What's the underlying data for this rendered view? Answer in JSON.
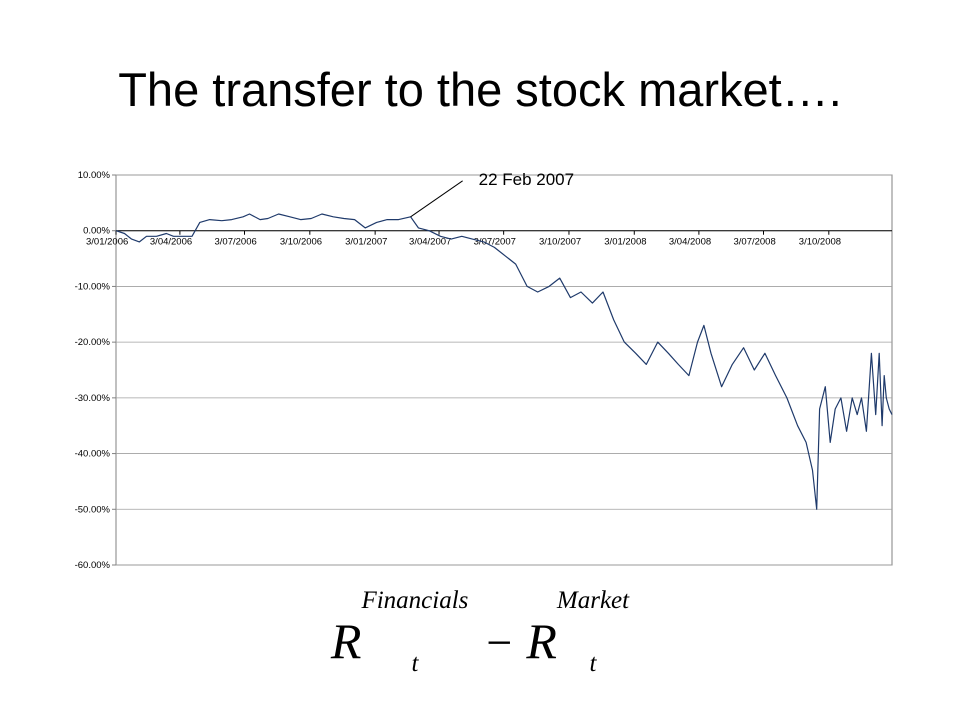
{
  "slide": {
    "title": "The transfer to the stock market…."
  },
  "formula": {
    "left_symbol": "R",
    "left_sup": "Financials",
    "left_sub": "t",
    "operator": "−",
    "right_symbol": "R",
    "right_sup": "Market",
    "right_sub": "t"
  },
  "chart_data": {
    "type": "line",
    "title": "",
    "xlabel": "",
    "ylabel": "",
    "ylim": [
      -0.6,
      0.1
    ],
    "y_ticks": [
      0.1,
      0.0,
      -0.1,
      -0.2,
      -0.3,
      -0.4,
      -0.5,
      -0.6
    ],
    "y_tick_labels": [
      "10.00%",
      "0.00%",
      "-10.00%",
      "-20.00%",
      "-30.00%",
      "-40.00%",
      "-50.00%",
      "-60.00%"
    ],
    "x_tick_labels": [
      "3/01/2006",
      "3/04/2006",
      "3/07/2006",
      "3/10/2006",
      "3/01/2007",
      "3/04/2007",
      "3/07/2007",
      "3/10/2007",
      "3/01/2008",
      "3/04/2008",
      "3/07/2008",
      "3/10/2008"
    ],
    "x_tick_dates": [
      "2006-01-03",
      "2006-04-03",
      "2006-07-03",
      "2006-10-03",
      "2007-01-03",
      "2007-04-03",
      "2007-07-03",
      "2007-10-03",
      "2008-01-03",
      "2008-04-03",
      "2008-07-03",
      "2008-10-03"
    ],
    "xlim": [
      "2006-01-03",
      "2008-12-31"
    ],
    "grid": true,
    "line_color": "#1f3a6b",
    "annotation": {
      "text": "22 Feb 2007",
      "x": "2007-02-22",
      "y": 0.025
    },
    "series": [
      {
        "points": [
          [
            "2006-01-03",
            0.0
          ],
          [
            "2006-01-15",
            -0.005
          ],
          [
            "2006-01-25",
            -0.015
          ],
          [
            "2006-02-05",
            -0.02
          ],
          [
            "2006-02-15",
            -0.01
          ],
          [
            "2006-03-01",
            -0.01
          ],
          [
            "2006-03-15",
            -0.005
          ],
          [
            "2006-03-25",
            -0.01
          ],
          [
            "2006-04-05",
            -0.01
          ],
          [
            "2006-04-20",
            -0.01
          ],
          [
            "2006-05-01",
            0.015
          ],
          [
            "2006-05-15",
            0.02
          ],
          [
            "2006-06-01",
            0.018
          ],
          [
            "2006-06-15",
            0.02
          ],
          [
            "2006-07-01",
            0.025
          ],
          [
            "2006-07-10",
            0.03
          ],
          [
            "2006-07-25",
            0.02
          ],
          [
            "2006-08-05",
            0.022
          ],
          [
            "2006-08-20",
            0.03
          ],
          [
            "2006-09-05",
            0.025
          ],
          [
            "2006-09-20",
            0.02
          ],
          [
            "2006-10-05",
            0.022
          ],
          [
            "2006-10-20",
            0.03
          ],
          [
            "2006-11-05",
            0.025
          ],
          [
            "2006-11-20",
            0.022
          ],
          [
            "2006-12-05",
            0.02
          ],
          [
            "2006-12-20",
            0.005
          ],
          [
            "2007-01-05",
            0.015
          ],
          [
            "2007-01-20",
            0.02
          ],
          [
            "2007-02-05",
            0.02
          ],
          [
            "2007-02-22",
            0.025
          ],
          [
            "2007-03-05",
            0.005
          ],
          [
            "2007-03-20",
            0.0
          ],
          [
            "2007-04-05",
            -0.01
          ],
          [
            "2007-04-20",
            -0.015
          ],
          [
            "2007-05-05",
            -0.01
          ],
          [
            "2007-05-20",
            -0.015
          ],
          [
            "2007-06-05",
            -0.02
          ],
          [
            "2007-06-20",
            -0.03
          ],
          [
            "2007-07-05",
            -0.045
          ],
          [
            "2007-07-20",
            -0.06
          ],
          [
            "2007-08-05",
            -0.1
          ],
          [
            "2007-08-20",
            -0.11
          ],
          [
            "2007-09-05",
            -0.1
          ],
          [
            "2007-09-20",
            -0.085
          ],
          [
            "2007-10-05",
            -0.12
          ],
          [
            "2007-10-20",
            -0.11
          ],
          [
            "2007-11-05",
            -0.13
          ],
          [
            "2007-11-20",
            -0.11
          ],
          [
            "2007-12-05",
            -0.16
          ],
          [
            "2007-12-20",
            -0.2
          ],
          [
            "2008-01-05",
            -0.22
          ],
          [
            "2008-01-20",
            -0.24
          ],
          [
            "2008-02-05",
            -0.2
          ],
          [
            "2008-02-20",
            -0.22
          ],
          [
            "2008-03-05",
            -0.24
          ],
          [
            "2008-03-20",
            -0.26
          ],
          [
            "2008-04-01",
            -0.2
          ],
          [
            "2008-04-10",
            -0.17
          ],
          [
            "2008-04-20",
            -0.22
          ],
          [
            "2008-05-05",
            -0.28
          ],
          [
            "2008-05-20",
            -0.24
          ],
          [
            "2008-06-05",
            -0.21
          ],
          [
            "2008-06-20",
            -0.25
          ],
          [
            "2008-07-05",
            -0.22
          ],
          [
            "2008-07-20",
            -0.26
          ],
          [
            "2008-08-05",
            -0.3
          ],
          [
            "2008-08-20",
            -0.35
          ],
          [
            "2008-09-01",
            -0.38
          ],
          [
            "2008-09-10",
            -0.43
          ],
          [
            "2008-09-16",
            -0.5
          ],
          [
            "2008-09-20",
            -0.32
          ],
          [
            "2008-09-28",
            -0.28
          ],
          [
            "2008-10-05",
            -0.38
          ],
          [
            "2008-10-12",
            -0.32
          ],
          [
            "2008-10-20",
            -0.3
          ],
          [
            "2008-10-28",
            -0.36
          ],
          [
            "2008-11-05",
            -0.3
          ],
          [
            "2008-11-12",
            -0.33
          ],
          [
            "2008-11-18",
            -0.3
          ],
          [
            "2008-11-25",
            -0.36
          ],
          [
            "2008-12-02",
            -0.22
          ],
          [
            "2008-12-08",
            -0.33
          ],
          [
            "2008-12-13",
            -0.22
          ],
          [
            "2008-12-17",
            -0.35
          ],
          [
            "2008-12-20",
            -0.26
          ],
          [
            "2008-12-23",
            -0.3
          ],
          [
            "2008-12-27",
            -0.32
          ],
          [
            "2008-12-31",
            -0.33
          ]
        ]
      }
    ]
  }
}
